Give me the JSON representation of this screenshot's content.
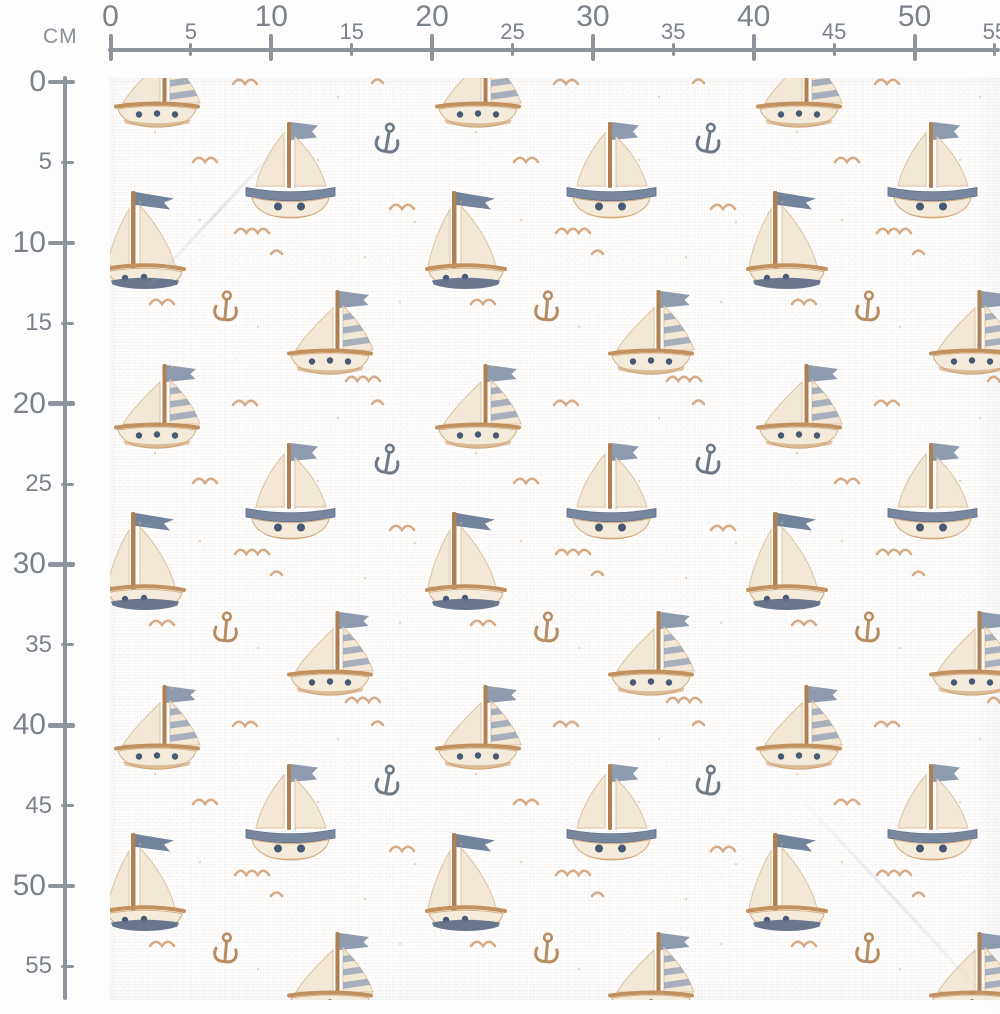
{
  "page": {
    "description": "Fabric swatch preview of a watercolor sailboat pattern shown to scale with centimeter rulers along the top and left edges",
    "background": "#fdfdfe"
  },
  "rulers": {
    "unit_label": "CM",
    "top": {
      "values": [
        0,
        5,
        10,
        15,
        20,
        25,
        30,
        35,
        40,
        45,
        50,
        55
      ]
    },
    "left": {
      "values": [
        0,
        5,
        10,
        15,
        20,
        25,
        30,
        35,
        40,
        45,
        50,
        55
      ]
    }
  },
  "pattern": {
    "name": "watercolor sailboats on white",
    "motifs": [
      "sailboat-striped-sail",
      "sailboat-round-hull",
      "sailboat-pennant-flag",
      "anchor-gray",
      "anchor-tan",
      "seagull-arc-single",
      "seagull-arc-double",
      "seagull-arc-triple",
      "speck-dots"
    ]
  },
  "palette": {
    "page-bg": "#fdfdfe",
    "ruler-line": "#8d949c",
    "ruler-number": "#7b828a",
    "unit-label": "#888f97",
    "fabric-bg": "#ffffff",
    "sail-cream": "#f3e7d5",
    "sail-edge": "#ddc3a3",
    "hull-cream": "#f5ebdb",
    "hull-edge": "#d5ae82",
    "wood-tan": "#c1905f",
    "mast-brown": "#b08055",
    "hull-shadow": "#c8935f",
    "band-blue": "#78869e",
    "band-blue-dark": "#5d6d87",
    "porthole-navy": "#475973",
    "flag-gray": "#8e9bae",
    "pennant-gray": "#72849c",
    "sail-stripe": "#93a1b5",
    "seagull-tan": "#d09d72",
    "anchor-gray": "#6e7988",
    "anchor-tan": "#b78c61",
    "speck-tan": "#d8b28e",
    "speck-gray": "#b9c0c9"
  }
}
